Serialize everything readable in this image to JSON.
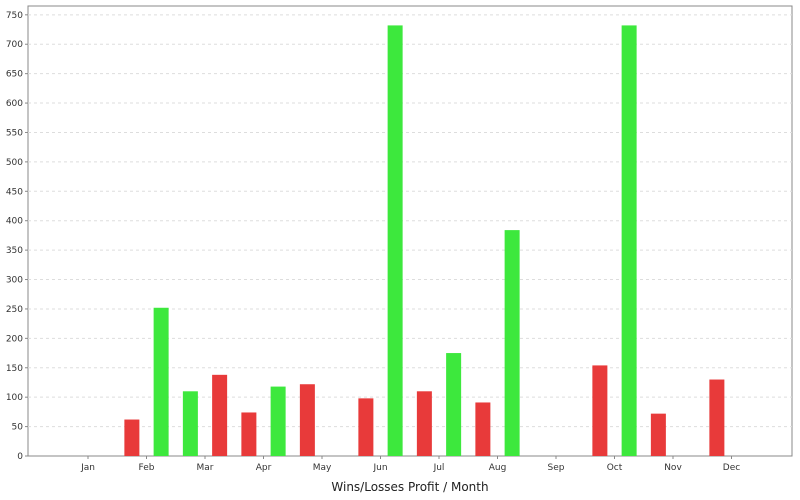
{
  "chart_data": {
    "type": "bar",
    "title": "Wins/Losses Profit / Month",
    "xlabel": "",
    "ylabel": "",
    "categories": [
      "Jan",
      "Feb",
      "Mar",
      "Apr",
      "May",
      "Jun",
      "Jul",
      "Aug",
      "Sep",
      "Oct",
      "Nov",
      "Dec"
    ],
    "y_ticks": [
      "0",
      "50",
      "100",
      "150",
      "200",
      "250",
      "300",
      "350",
      "400",
      "450",
      "500",
      "550",
      "600",
      "650",
      "700",
      "750"
    ],
    "ylim": [
      0,
      765
    ],
    "grid": true,
    "colors": {
      "win": "#3de83d",
      "loss": "#e83a3a"
    },
    "bars": [
      {
        "type": "loss",
        "x": 0.75,
        "value": 62
      },
      {
        "type": "win",
        "x": 1.25,
        "value": 252
      },
      {
        "type": "win",
        "x": 1.75,
        "value": 110
      },
      {
        "type": "loss",
        "x": 2.25,
        "value": 138
      },
      {
        "type": "loss",
        "x": 2.75,
        "value": 74
      },
      {
        "type": "win",
        "x": 3.25,
        "value": 118
      },
      {
        "type": "loss",
        "x": 3.75,
        "value": 122
      },
      {
        "type": "loss",
        "x": 4.75,
        "value": 98
      },
      {
        "type": "win",
        "x": 5.25,
        "value": 732
      },
      {
        "type": "loss",
        "x": 5.75,
        "value": 110
      },
      {
        "type": "win",
        "x": 6.25,
        "value": 175
      },
      {
        "type": "loss",
        "x": 6.75,
        "value": 91
      },
      {
        "type": "win",
        "x": 7.25,
        "value": 384
      },
      {
        "type": "loss",
        "x": 8.75,
        "value": 154
      },
      {
        "type": "win",
        "x": 9.25,
        "value": 732
      },
      {
        "type": "loss",
        "x": 9.75,
        "value": 72
      },
      {
        "type": "loss",
        "x": 10.75,
        "value": 130
      }
    ]
  }
}
